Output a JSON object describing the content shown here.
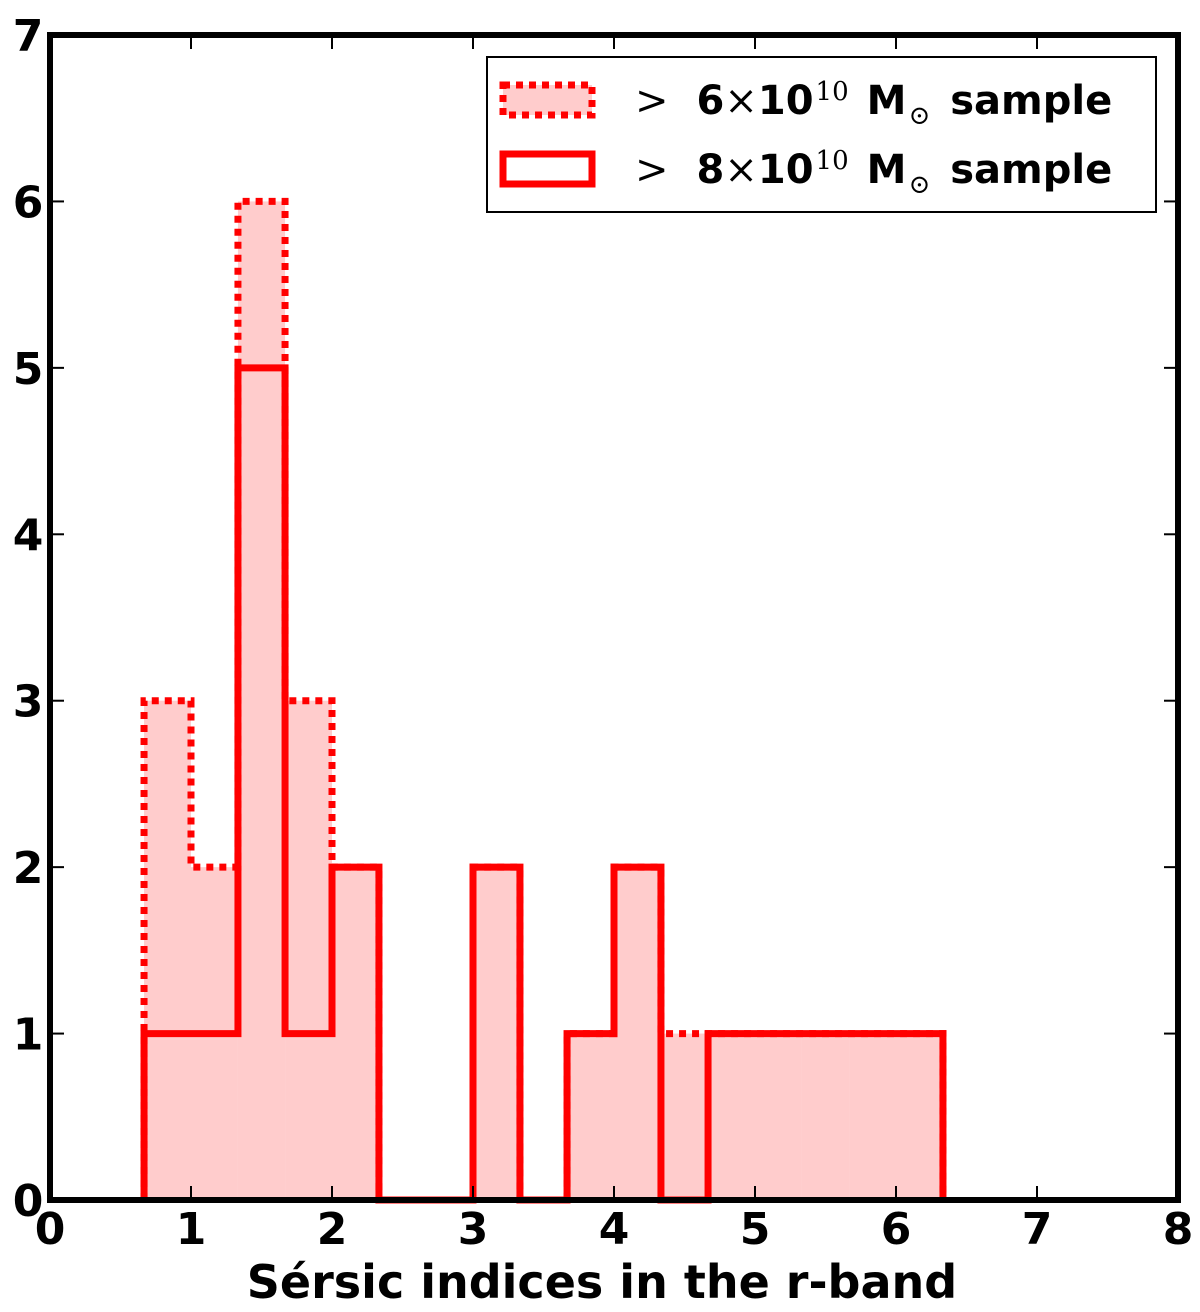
{
  "chart_data": {
    "type": "histogram",
    "xlabel": "Sérsic indices in the r-band",
    "ylabel": "",
    "xlim": [
      0,
      8
    ],
    "ylim": [
      0,
      7
    ],
    "xticks": [
      "0",
      "1",
      "2",
      "3",
      "4",
      "5",
      "6",
      "7",
      "8"
    ],
    "yticks": [
      "0",
      "1",
      "2",
      "3",
      "4",
      "5",
      "6",
      "7"
    ],
    "grid": false,
    "legend_position": "top-right",
    "fill_color": "#ffcccc",
    "line_color": "#ff0000",
    "bin_edges": [
      0.667,
      1.0,
      1.333,
      1.667,
      2.0,
      2.333,
      2.667,
      3.0,
      3.333,
      3.667,
      4.0,
      4.333,
      4.667,
      5.0,
      5.333,
      5.667,
      6.0,
      6.333
    ],
    "series": [
      {
        "legend_label": {
          "prefix": ">",
          "coefficient": "6",
          "times": "×",
          "base": "10",
          "exponent": "10",
          "unit": "M",
          "unit_subscript": "⊙",
          "suffix": "sample"
        },
        "line_style": "dotted",
        "filled": true,
        "counts": [
          3,
          2,
          6,
          3,
          2,
          0,
          0,
          2,
          0,
          1,
          2,
          1,
          1,
          1,
          1,
          1,
          1
        ]
      },
      {
        "legend_label": {
          "prefix": ">",
          "coefficient": "8",
          "times": "×",
          "base": "10",
          "exponent": "10",
          "unit": "M",
          "unit_subscript": "⊙",
          "suffix": "sample"
        },
        "line_style": "solid",
        "filled": false,
        "counts": [
          1,
          1,
          5,
          1,
          2,
          0,
          0,
          2,
          0,
          1,
          2,
          0,
          1,
          1,
          1,
          1,
          1
        ]
      }
    ]
  }
}
